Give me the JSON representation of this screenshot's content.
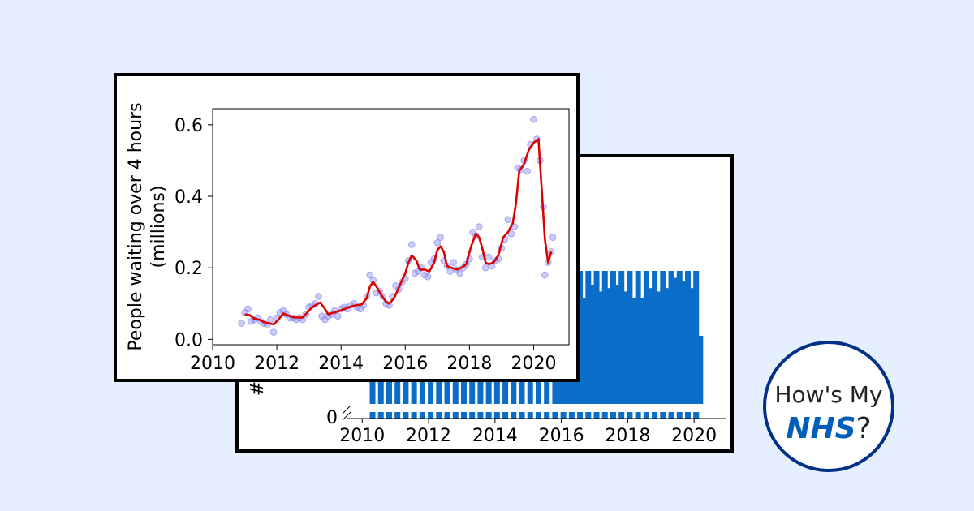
{
  "chart_data": [
    {
      "type": "line",
      "title": "",
      "xlabel": "",
      "ylabel": "People waiting over 4 hours (millions)",
      "ylabel_lines": [
        "People waiting over 4 hours",
        "(millions)"
      ],
      "xlim": [
        2010,
        2021.1
      ],
      "ylim": [
        -0.015,
        0.645
      ],
      "x_ticks": [
        2010,
        2012,
        2014,
        2016,
        2018,
        2020
      ],
      "y_ticks": [
        0.0,
        0.2,
        0.4,
        0.6
      ],
      "y_tick_labels": [
        "0.0",
        "0.2",
        "0.4",
        "0.6"
      ],
      "grid": false,
      "series": [
        {
          "kind": "scatter",
          "color": "#8c8cf0",
          "points": [
            [
              2010.9,
              0.045
            ],
            [
              2011.0,
              0.075
            ],
            [
              2011.1,
              0.085
            ],
            [
              2011.2,
              0.05
            ],
            [
              2011.3,
              0.055
            ],
            [
              2011.4,
              0.06
            ],
            [
              2011.5,
              0.05
            ],
            [
              2011.6,
              0.045
            ],
            [
              2011.7,
              0.04
            ],
            [
              2011.8,
              0.055
            ],
            [
              2011.9,
              0.02
            ],
            [
              2012.0,
              0.06
            ],
            [
              2012.1,
              0.075
            ],
            [
              2012.2,
              0.08
            ],
            [
              2012.3,
              0.07
            ],
            [
              2012.4,
              0.06
            ],
            [
              2012.5,
              0.06
            ],
            [
              2012.6,
              0.055
            ],
            [
              2012.7,
              0.06
            ],
            [
              2012.8,
              0.055
            ],
            [
              2012.9,
              0.07
            ],
            [
              2013.0,
              0.09
            ],
            [
              2013.1,
              0.095
            ],
            [
              2013.2,
              0.1
            ],
            [
              2013.3,
              0.12
            ],
            [
              2013.4,
              0.065
            ],
            [
              2013.5,
              0.055
            ],
            [
              2013.6,
              0.065
            ],
            [
              2013.7,
              0.07
            ],
            [
              2013.8,
              0.08
            ],
            [
              2013.9,
              0.065
            ],
            [
              2014.0,
              0.085
            ],
            [
              2014.1,
              0.09
            ],
            [
              2014.2,
              0.085
            ],
            [
              2014.3,
              0.095
            ],
            [
              2014.4,
              0.1
            ],
            [
              2014.5,
              0.09
            ],
            [
              2014.6,
              0.085
            ],
            [
              2014.7,
              0.095
            ],
            [
              2014.8,
              0.12
            ],
            [
              2014.9,
              0.18
            ],
            [
              2015.0,
              0.165
            ],
            [
              2015.1,
              0.13
            ],
            [
              2015.2,
              0.135
            ],
            [
              2015.3,
              0.12
            ],
            [
              2015.4,
              0.1
            ],
            [
              2015.5,
              0.095
            ],
            [
              2015.6,
              0.12
            ],
            [
              2015.7,
              0.15
            ],
            [
              2015.8,
              0.14
            ],
            [
              2015.9,
              0.16
            ],
            [
              2016.0,
              0.17
            ],
            [
              2016.1,
              0.22
            ],
            [
              2016.2,
              0.265
            ],
            [
              2016.3,
              0.185
            ],
            [
              2016.4,
              0.19
            ],
            [
              2016.5,
              0.2
            ],
            [
              2016.6,
              0.18
            ],
            [
              2016.7,
              0.175
            ],
            [
              2016.8,
              0.215
            ],
            [
              2016.9,
              0.225
            ],
            [
              2017.0,
              0.27
            ],
            [
              2017.1,
              0.285
            ],
            [
              2017.2,
              0.22
            ],
            [
              2017.3,
              0.205
            ],
            [
              2017.4,
              0.19
            ],
            [
              2017.5,
              0.215
            ],
            [
              2017.6,
              0.195
            ],
            [
              2017.7,
              0.185
            ],
            [
              2017.8,
              0.2
            ],
            [
              2017.9,
              0.21
            ],
            [
              2018.0,
              0.225
            ],
            [
              2018.1,
              0.3
            ],
            [
              2018.2,
              0.29
            ],
            [
              2018.3,
              0.315
            ],
            [
              2018.4,
              0.23
            ],
            [
              2018.5,
              0.2
            ],
            [
              2018.6,
              0.23
            ],
            [
              2018.7,
              0.205
            ],
            [
              2018.8,
              0.22
            ],
            [
              2018.9,
              0.225
            ],
            [
              2019.0,
              0.255
            ],
            [
              2019.1,
              0.28
            ],
            [
              2019.2,
              0.335
            ],
            [
              2019.3,
              0.295
            ],
            [
              2019.4,
              0.315
            ],
            [
              2019.5,
              0.48
            ],
            [
              2019.6,
              0.475
            ],
            [
              2019.7,
              0.5
            ],
            [
              2019.8,
              0.47
            ],
            [
              2019.9,
              0.545
            ],
            [
              2020.0,
              0.615
            ],
            [
              2020.1,
              0.56
            ],
            [
              2020.2,
              0.5
            ],
            [
              2020.3,
              0.37
            ],
            [
              2020.35,
              0.18
            ],
            [
              2020.45,
              0.215
            ],
            [
              2020.55,
              0.245
            ],
            [
              2020.6,
              0.285
            ]
          ]
        },
        {
          "kind": "line",
          "color": "#dd0000",
          "points": [
            [
              2011.0,
              0.07
            ],
            [
              2011.15,
              0.068
            ],
            [
              2011.3,
              0.058
            ],
            [
              2011.45,
              0.055
            ],
            [
              2011.6,
              0.048
            ],
            [
              2011.75,
              0.045
            ],
            [
              2011.9,
              0.042
            ],
            [
              2012.05,
              0.055
            ],
            [
              2012.2,
              0.072
            ],
            [
              2012.35,
              0.067
            ],
            [
              2012.5,
              0.062
            ],
            [
              2012.65,
              0.061
            ],
            [
              2012.8,
              0.061
            ],
            [
              2012.95,
              0.075
            ],
            [
              2013.1,
              0.09
            ],
            [
              2013.25,
              0.098
            ],
            [
              2013.35,
              0.103
            ],
            [
              2013.5,
              0.085
            ],
            [
              2013.6,
              0.07
            ],
            [
              2013.75,
              0.074
            ],
            [
              2013.9,
              0.078
            ],
            [
              2014.05,
              0.083
            ],
            [
              2014.2,
              0.088
            ],
            [
              2014.35,
              0.093
            ],
            [
              2014.5,
              0.096
            ],
            [
              2014.65,
              0.098
            ],
            [
              2014.8,
              0.115
            ],
            [
              2014.9,
              0.148
            ],
            [
              2015.0,
              0.16
            ],
            [
              2015.1,
              0.148
            ],
            [
              2015.25,
              0.125
            ],
            [
              2015.4,
              0.105
            ],
            [
              2015.5,
              0.1
            ],
            [
              2015.65,
              0.115
            ],
            [
              2015.8,
              0.145
            ],
            [
              2016.0,
              0.185
            ],
            [
              2016.1,
              0.215
            ],
            [
              2016.2,
              0.235
            ],
            [
              2016.35,
              0.22
            ],
            [
              2016.45,
              0.195
            ],
            [
              2016.6,
              0.195
            ],
            [
              2016.75,
              0.19
            ],
            [
              2016.9,
              0.215
            ],
            [
              2017.0,
              0.25
            ],
            [
              2017.1,
              0.26
            ],
            [
              2017.2,
              0.245
            ],
            [
              2017.3,
              0.205
            ],
            [
              2017.45,
              0.2
            ],
            [
              2017.6,
              0.195
            ],
            [
              2017.75,
              0.2
            ],
            [
              2017.9,
              0.21
            ],
            [
              2018.05,
              0.26
            ],
            [
              2018.2,
              0.295
            ],
            [
              2018.3,
              0.285
            ],
            [
              2018.4,
              0.255
            ],
            [
              2018.5,
              0.215
            ],
            [
              2018.6,
              0.21
            ],
            [
              2018.75,
              0.215
            ],
            [
              2018.9,
              0.235
            ],
            [
              2019.05,
              0.285
            ],
            [
              2019.2,
              0.3
            ],
            [
              2019.35,
              0.325
            ],
            [
              2019.45,
              0.38
            ],
            [
              2019.55,
              0.47
            ],
            [
              2019.7,
              0.49
            ],
            [
              2019.85,
              0.53
            ],
            [
              2020.0,
              0.55
            ],
            [
              2020.15,
              0.56
            ],
            [
              2020.25,
              0.42
            ],
            [
              2020.35,
              0.28
            ],
            [
              2020.45,
              0.215
            ],
            [
              2020.55,
              0.245
            ]
          ]
        }
      ]
    },
    {
      "type": "bar",
      "title": "",
      "xlabel": "",
      "ylabel": "#",
      "x_ticks": [
        2010,
        2012,
        2014,
        2016,
        2018,
        2020
      ],
      "y_ticks": [
        0
      ],
      "y_tick_labels": [
        "0"
      ],
      "xlim": [
        2009.7,
        2020.95
      ],
      "broken_axis": true,
      "bar_color": "#0a6ec8",
      "visible_bar_tops": [
        [
          2015.9,
          0.35
        ],
        [
          2016.15,
          0.34
        ],
        [
          2016.4,
          0.35
        ],
        [
          2016.65,
          0.31
        ],
        [
          2016.9,
          0.35
        ],
        [
          2017.15,
          0.33
        ],
        [
          2017.4,
          0.34
        ],
        [
          2017.65,
          0.35
        ],
        [
          2017.9,
          0.33
        ],
        [
          2018.15,
          0.31
        ],
        [
          2018.4,
          0.31
        ],
        [
          2018.65,
          0.34
        ],
        [
          2018.9,
          0.33
        ],
        [
          2019.15,
          0.34
        ],
        [
          2019.4,
          0.37
        ],
        [
          2019.65,
          0.36
        ],
        [
          2019.9,
          0.34
        ],
        [
          2020.15,
          0.2
        ]
      ]
    }
  ],
  "badge": {
    "line1": "How's My",
    "nhs": "NHS",
    "question": "?"
  },
  "colors": {
    "background": "#e6effd",
    "bar": "#0a6ec8",
    "line": "#dd0000",
    "scatter": "#8c8cf0",
    "badge_border": "#003087",
    "nhs_blue": "#005eb8"
  }
}
